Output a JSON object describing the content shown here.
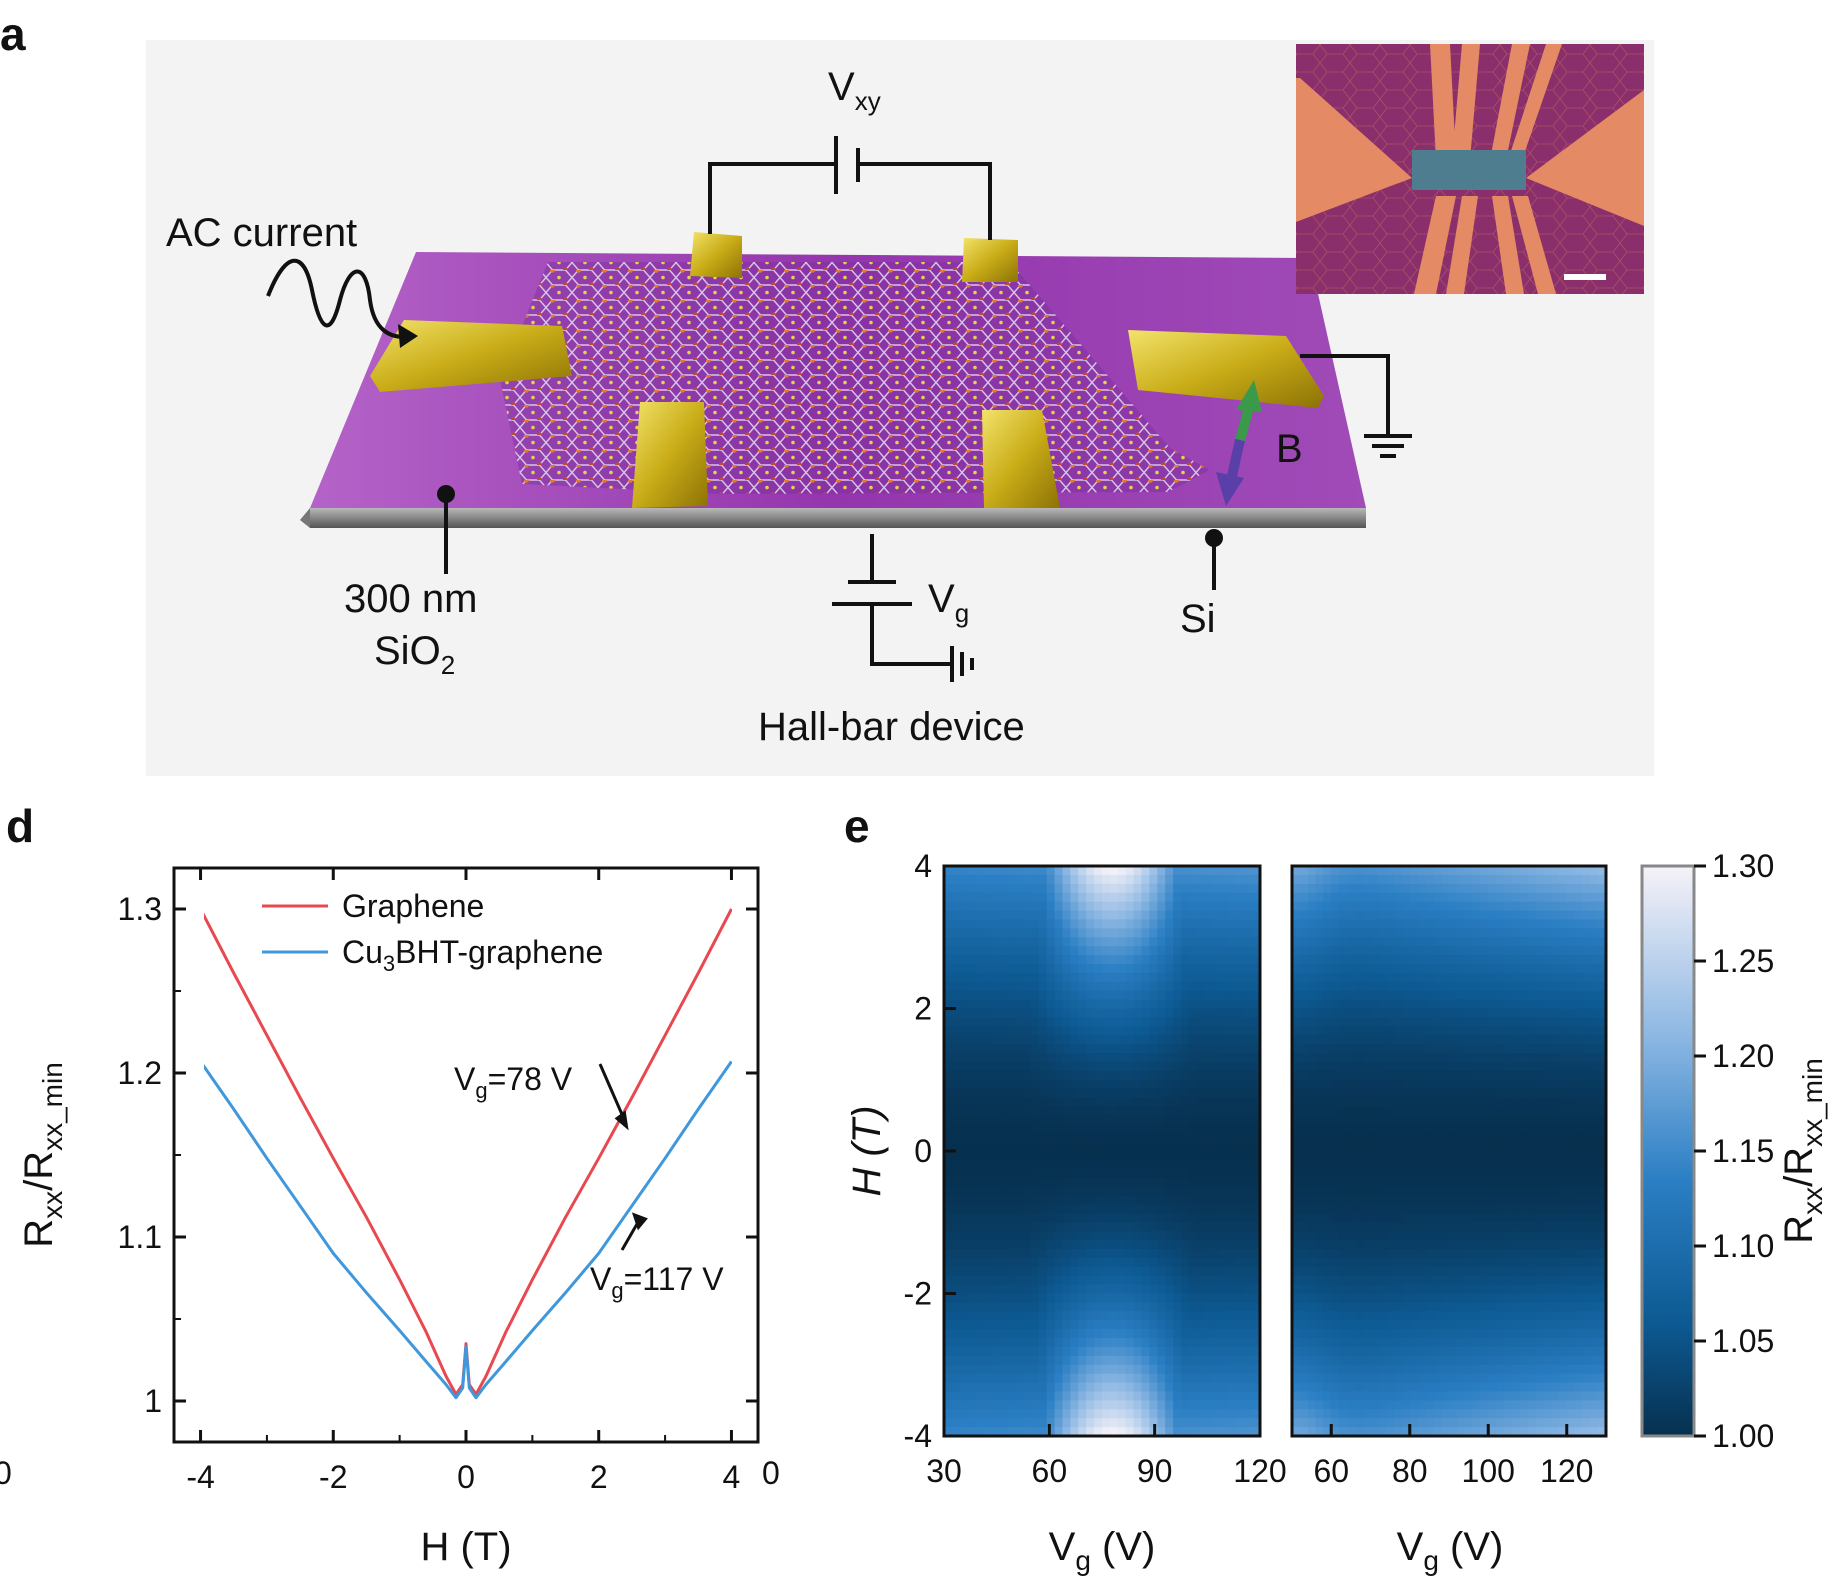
{
  "panel_a": {
    "letter": "a",
    "ac_current": "AC current",
    "vxy": {
      "main": "V",
      "sub": "xy"
    },
    "b_field": "B",
    "oxide_line1": "300 nm",
    "oxide_line2": {
      "main": "SiO",
      "sub": "2"
    },
    "si": "Si",
    "vg": {
      "main": "V",
      "sub": "g"
    },
    "device": "Hall-bar device"
  },
  "panel_d": {
    "letter": "d",
    "edge_zero_left": "0",
    "edge_zero_right": "0"
  },
  "panel_e": {
    "letter": "e",
    "colorbar_ticks": [
      "1.30",
      "1.25",
      "1.20",
      "1.15",
      "1.10",
      "1.05",
      "1.00"
    ],
    "colorbar_label": {
      "main": "R",
      "sub1": "xx",
      "mid": "/R",
      "sub2": "xx_min"
    }
  },
  "colors": {
    "graphene": "#e8484f",
    "cu3bht": "#3f97dc",
    "substrate": "#9b3fb0",
    "gold": "#cdb21e",
    "heat_dark": "#07304f",
    "heat_light": "#f4f1f7"
  },
  "chart_data": [
    {
      "type": "line",
      "panel": "d",
      "xlabel": "H (T)",
      "ylabel": {
        "main": "R",
        "sub1": "xx",
        "mid": "/R",
        "sub2": "xx_min"
      },
      "xlim": [
        -4.4,
        4.4
      ],
      "ylim": [
        0.975,
        1.325
      ],
      "xticks": [
        -4,
        -2,
        0,
        2,
        4
      ],
      "yticks": [
        1.0,
        1.1,
        1.2,
        1.3
      ],
      "ytick_labels": [
        "1",
        "1.1",
        "1.2",
        "1.3"
      ],
      "legend_position": "top-left",
      "series": [
        {
          "name": "Graphene",
          "legend": {
            "main": "Graphene"
          },
          "color": "#e8484f",
          "x": [
            -4,
            -3.5,
            -3,
            -2.5,
            -2,
            -1.5,
            -1,
            -0.6,
            -0.3,
            -0.15,
            -0.05,
            0,
            0.05,
            0.15,
            0.3,
            0.6,
            1,
            1.5,
            2,
            2.5,
            3,
            3.5,
            4
          ],
          "y": [
            1.3,
            1.261,
            1.223,
            1.185,
            1.148,
            1.112,
            1.074,
            1.042,
            1.015,
            1.004,
            1.01,
            1.035,
            1.01,
            1.004,
            1.015,
            1.042,
            1.074,
            1.112,
            1.148,
            1.185,
            1.223,
            1.261,
            1.3
          ]
        },
        {
          "name": "Cu3BHT-graphene",
          "legend": {
            "main": "Cu",
            "sub": "3",
            "rest": "BHT-graphene"
          },
          "color": "#3f97dc",
          "x": [
            -4,
            -3.5,
            -3,
            -2.5,
            -2,
            -1.5,
            -1,
            -0.6,
            -0.3,
            -0.15,
            -0.05,
            0,
            0.05,
            0.15,
            0.3,
            0.6,
            1,
            1.5,
            2,
            2.5,
            3,
            3.5,
            4
          ],
          "y": [
            1.207,
            1.178,
            1.148,
            1.119,
            1.09,
            1.066,
            1.043,
            1.024,
            1.01,
            1.002,
            1.008,
            1.033,
            1.008,
            1.002,
            1.01,
            1.024,
            1.043,
            1.066,
            1.09,
            1.119,
            1.148,
            1.178,
            1.207
          ]
        }
      ],
      "annotations": [
        {
          "main": "V",
          "sub": "g",
          "rest": "=78 V",
          "x": 2.45,
          "y": 1.165
        },
        {
          "main": "V",
          "sub": "g",
          "rest": "=117 V",
          "x": 2.5,
          "y": 1.115
        }
      ]
    },
    {
      "type": "heatmap",
      "panel": "e-left",
      "xlabel": {
        "main": "V",
        "sub": "g",
        "rest": " (V)"
      },
      "ylabel": "H (T)",
      "xlim": [
        30,
        120
      ],
      "ylim": [
        -4,
        4
      ],
      "xticks": [
        30,
        60,
        90,
        120
      ],
      "yticks": [
        -4,
        -2,
        0,
        2,
        4
      ],
      "color_range": [
        1.0,
        1.3
      ],
      "z_description_max_at": {
        "vg": 78,
        "h": [
          -4,
          4
        ]
      },
      "z_at_edges": {
        "vg_center_h4": 1.3,
        "vg_30_h4": 1.14,
        "vg_120_h4": 1.16,
        "h0": 1.0
      }
    },
    {
      "type": "heatmap",
      "panel": "e-right",
      "xlabel": {
        "main": "V",
        "sub": "g",
        "rest": " (V)"
      },
      "xlim": [
        50,
        130
      ],
      "ylim": [
        -4,
        4
      ],
      "xticks": [
        60,
        80,
        100,
        120
      ],
      "color_range": [
        1.0,
        1.3
      ],
      "z_at_edges": {
        "vg_50_h4": 1.14,
        "vg_130_h4": 1.22,
        "h0": 1.0
      }
    }
  ]
}
